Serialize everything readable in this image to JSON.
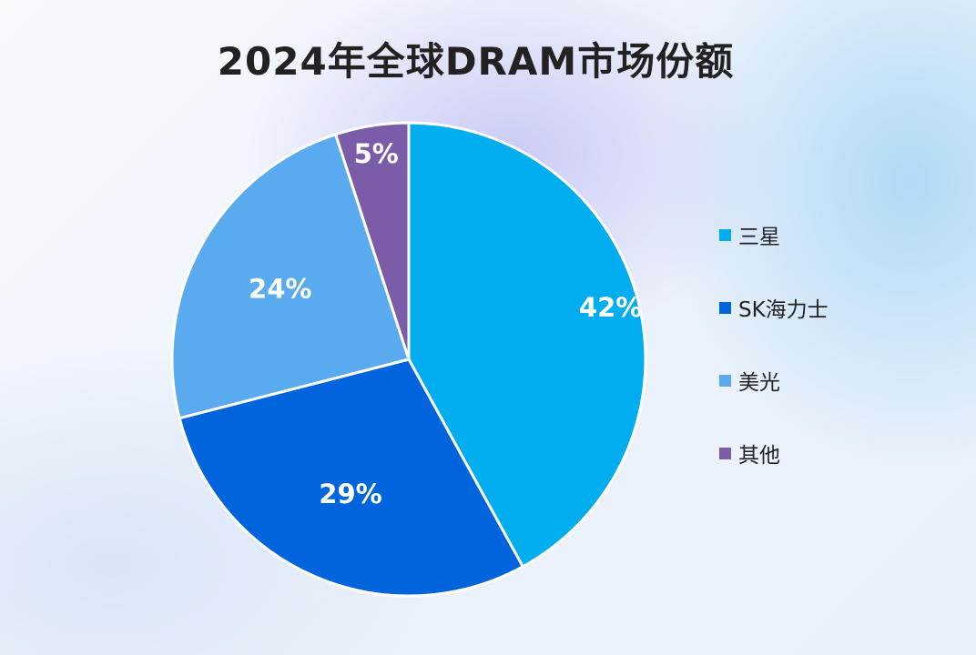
{
  "chart_data": {
    "type": "pie",
    "title": "2024年全球DRAM市场份额",
    "categories": [
      "三星",
      "SK海力士",
      "美光",
      "其他"
    ],
    "values": [
      42,
      29,
      24,
      5
    ],
    "data_labels": [
      "42%",
      "29%",
      "24%",
      "5%"
    ],
    "colors": [
      "#00AEEF",
      "#0064DC",
      "#5AAAF0",
      "#7B5CA8"
    ],
    "legend_position": "right"
  }
}
